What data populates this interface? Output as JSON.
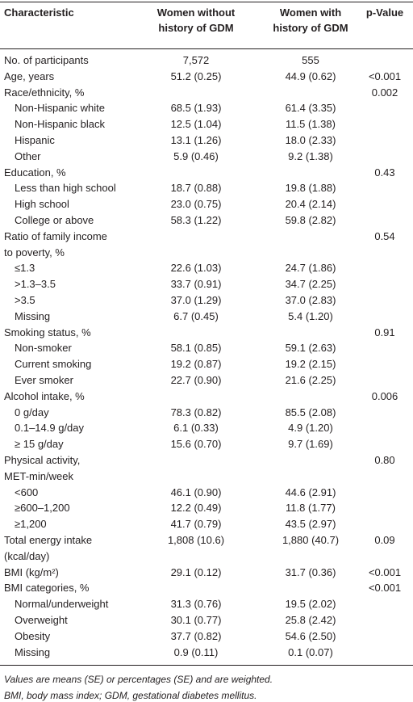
{
  "header": {
    "characteristic": "Characteristic",
    "without_gdm": [
      "Women without",
      "history of GDM"
    ],
    "with_gdm": [
      "Women with",
      "history of GDM"
    ],
    "p_value": "p-Value"
  },
  "rows": [
    {
      "cells": [
        "No. of participants",
        "7,572",
        "555",
        null
      ]
    },
    {
      "cells": [
        "Age, years",
        "51.2 (0.25)",
        "44.9 (0.62)",
        "<0.001"
      ]
    },
    {
      "cells": [
        "Race/ethnicity, %",
        null,
        null,
        "0.002"
      ]
    },
    {
      "cells": [
        "Non-Hispanic white",
        "68.5 (1.93)",
        "61.4 (3.35)",
        null
      ],
      "indent": true
    },
    {
      "cells": [
        "Non-Hispanic black",
        "12.5 (1.04)",
        "11.5 (1.38)",
        null
      ],
      "indent": true
    },
    {
      "cells": [
        "Hispanic",
        "13.1 (1.26)",
        "18.0 (2.33)",
        null
      ],
      "indent": true
    },
    {
      "cells": [
        "Other",
        "5.9 (0.46)",
        "9.2 (1.38)",
        null
      ],
      "indent": true
    },
    {
      "cells": [
        "Education, %",
        null,
        null,
        "0.43"
      ]
    },
    {
      "cells": [
        "Less than high school",
        "18.7 (0.88)",
        "19.8 (1.88)",
        null
      ],
      "indent": true
    },
    {
      "cells": [
        "High school",
        "23.0 (0.75)",
        "20.4 (2.14)",
        null
      ],
      "indent": true
    },
    {
      "cells": [
        "College or above",
        "58.3 (1.22)",
        "59.8 (2.82)",
        null
      ],
      "indent": true
    },
    {
      "cells": [
        "Ratio of family income",
        null,
        null,
        "0.54"
      ]
    },
    {
      "cells": [
        "to poverty, %",
        null,
        null,
        null
      ]
    },
    {
      "cells": [
        "≤1.3",
        "22.6 (1.03)",
        "24.7 (1.86)",
        null
      ],
      "indent": true
    },
    {
      "cells": [
        ">1.3–3.5",
        "33.7 (0.91)",
        "34.7 (2.25)",
        null
      ],
      "indent": true
    },
    {
      "cells": [
        ">3.5",
        "37.0 (1.29)",
        "37.0 (2.83)",
        null
      ],
      "indent": true
    },
    {
      "cells": [
        "Missing",
        "6.7 (0.45)",
        "5.4 (1.20)",
        null
      ],
      "indent": true
    },
    {
      "cells": [
        "Smoking status, %",
        null,
        null,
        "0.91"
      ]
    },
    {
      "cells": [
        "Non-smoker",
        "58.1 (0.85)",
        "59.1 (2.63)",
        null
      ],
      "indent": true
    },
    {
      "cells": [
        "Current smoking",
        "19.2 (0.87)",
        "19.2 (2.15)",
        null
      ],
      "indent": true
    },
    {
      "cells": [
        "Ever smoker",
        "22.7 (0.90)",
        "21.6 (2.25)",
        null
      ],
      "indent": true
    },
    {
      "cells": [
        "Alcohol intake, %",
        null,
        null,
        "0.006"
      ]
    },
    {
      "cells": [
        "0 g/day",
        "78.3 (0.82)",
        "85.5 (2.08)",
        null
      ],
      "indent": true
    },
    {
      "cells": [
        "0.1–14.9 g/day",
        "6.1 (0.33)",
        "4.9 (1.20)",
        null
      ],
      "indent": true
    },
    {
      "cells": [
        "≥ 15 g/day",
        "15.6 (0.70)",
        "9.7 (1.69)",
        null
      ],
      "indent": true
    },
    {
      "cells": [
        "Physical activity,",
        null,
        null,
        "0.80"
      ]
    },
    {
      "cells": [
        "MET-min/week",
        null,
        null,
        null
      ]
    },
    {
      "cells": [
        "<600",
        "46.1 (0.90)",
        "44.6 (2.91)",
        null
      ],
      "indent": true
    },
    {
      "cells": [
        "≥600–1,200",
        "12.2 (0.49)",
        "11.8 (1.77)",
        null
      ],
      "indent": true
    },
    {
      "cells": [
        "≥1,200",
        "41.7 (0.79)",
        "43.5 (2.97)",
        null
      ],
      "indent": true
    },
    {
      "cells": [
        "Total energy intake",
        "1,808 (10.6)",
        "1,880 (40.7)",
        "0.09"
      ]
    },
    {
      "cells": [
        "(kcal/day)",
        null,
        null,
        null
      ]
    },
    {
      "cells": [
        "BMI (kg/m²)",
        "29.1 (0.12)",
        "31.7 (0.36)",
        "<0.001"
      ]
    },
    {
      "cells": [
        "BMI categories, %",
        null,
        null,
        "<0.001"
      ]
    },
    {
      "cells": [
        "Normal/underweight",
        "31.3 (0.76)",
        "19.5 (2.02)",
        null
      ],
      "indent": true
    },
    {
      "cells": [
        "Overweight",
        "30.1 (0.77)",
        "25.8 (2.42)",
        null
      ],
      "indent": true
    },
    {
      "cells": [
        "Obesity",
        "37.7 (0.82)",
        "54.6 (2.50)",
        null
      ],
      "indent": true
    },
    {
      "cells": [
        "Missing",
        "0.9 (0.11)",
        "0.1 (0.07)",
        null
      ],
      "indent": true
    }
  ],
  "footnotes": [
    "Values are means (SE) or percentages (SE) and are weighted.",
    "BMI, body mass index; GDM, gestational diabetes mellitus."
  ]
}
